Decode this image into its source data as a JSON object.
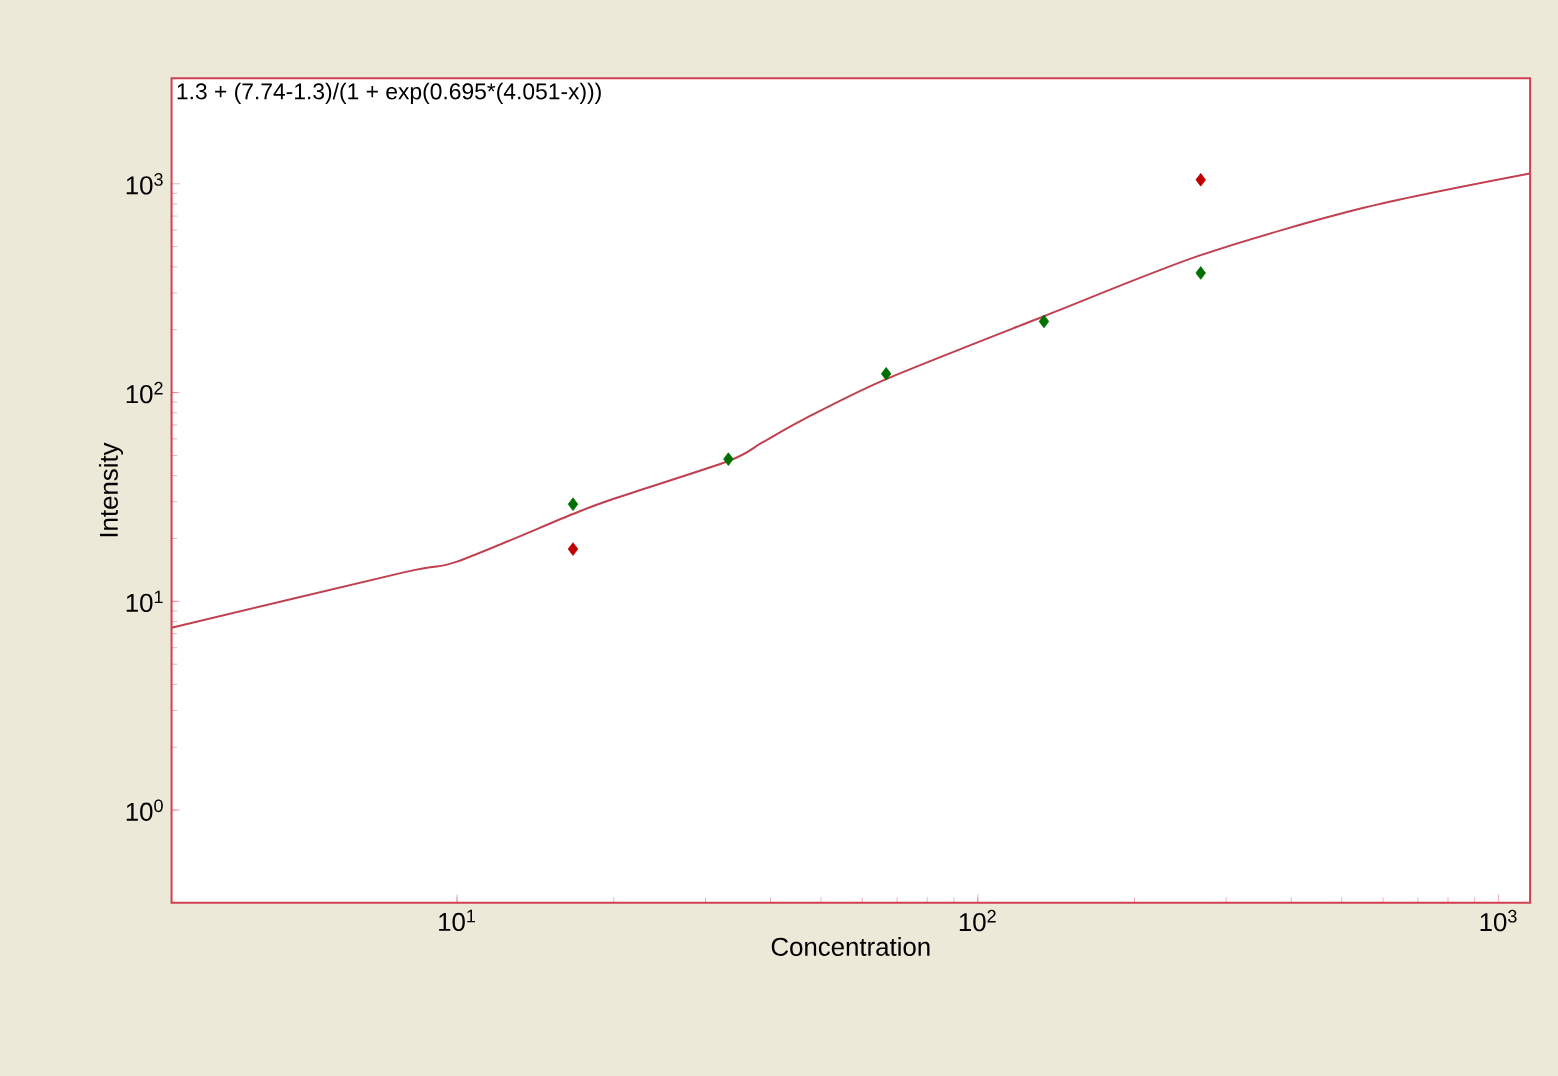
{
  "chart_data": {
    "type": "scatter",
    "xlabel": "Concentration",
    "ylabel": "Intensity",
    "annotations": [
      "1.3 + (7.74-1.3)/(1 + exp(0.695*(4.051-x)))"
    ],
    "log": "xy",
    "grid": false,
    "marker": "diamond",
    "xlim": [
      2.83,
      1150
    ],
    "ylim": [
      0.36,
      3200
    ],
    "xticks": [
      {
        "value": 10,
        "label": "10$^{1}$"
      },
      {
        "value": 100,
        "label": "10$^{2}$"
      },
      {
        "value": 1000,
        "label": "10$^{3}$"
      }
    ],
    "yticks": [
      {
        "value": 1,
        "label": "10$^{0}$"
      },
      {
        "value": 10,
        "label": "10$^{1}$"
      },
      {
        "value": 100,
        "label": "10$^{2}$"
      },
      {
        "value": 1000,
        "label": "10$^{3}$"
      }
    ],
    "series": [
      {
        "type": "line",
        "color": "#c04050",
        "marker": "none",
        "x": [
          2.83,
          7.94,
          10,
          16.7,
          20,
          33.2,
          38.6,
          46.4,
          66.7,
          134,
          268,
          551,
          1150
        ],
        "values": [
          7.47,
          13.8,
          15.5,
          26.2,
          31,
          47,
          57.7,
          74.6,
          116,
          232,
          455,
          767,
          1120
        ]
      },
      {
        "color": "#007000",
        "x": [
          16.7,
          33.2,
          66.7,
          134,
          268
        ],
        "values": [
          29.2,
          48,
          123,
          219,
          374
        ]
      },
      {
        "color": "#c00000",
        "x": [
          16.7,
          268
        ],
        "values": [
          17.8,
          1045
        ]
      }
    ]
  }
}
